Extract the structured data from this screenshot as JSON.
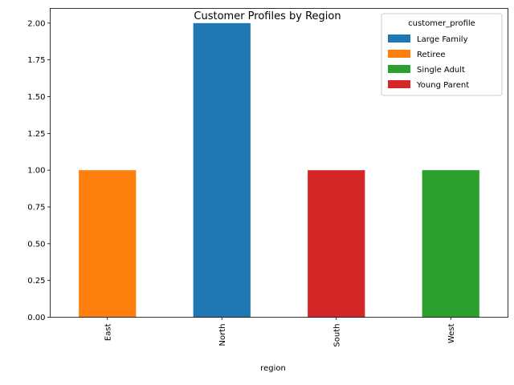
{
  "chart_data": {
    "type": "bar",
    "stacked": true,
    "title": "Customer Profiles by Region",
    "xlabel": "region",
    "ylabel": "",
    "categories": [
      "East",
      "North",
      "South",
      "West"
    ],
    "series": [
      {
        "name": "Large Family",
        "color": "#1f77b4",
        "values": [
          0,
          2,
          0,
          0
        ]
      },
      {
        "name": "Retiree",
        "color": "#ff7f0e",
        "values": [
          1,
          0,
          0,
          0
        ]
      },
      {
        "name": "Single Adult",
        "color": "#2ca02c",
        "values": [
          0,
          0,
          0,
          1
        ]
      },
      {
        "name": "Young Parent",
        "color": "#d62728",
        "values": [
          0,
          0,
          1,
          0
        ]
      }
    ],
    "ylim": [
      0,
      2.1
    ],
    "yticks": [
      "0.00",
      "0.25",
      "0.50",
      "0.75",
      "1.00",
      "1.25",
      "1.50",
      "1.75",
      "2.00"
    ],
    "grid": false,
    "legend": {
      "title": "customer_profile",
      "position": "top-right"
    }
  }
}
